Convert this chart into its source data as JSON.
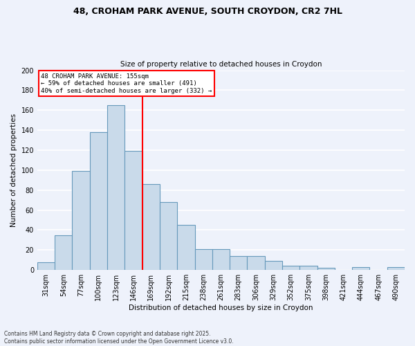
{
  "title1": "48, CROHAM PARK AVENUE, SOUTH CROYDON, CR2 7HL",
  "title2": "Size of property relative to detached houses in Croydon",
  "xlabel": "Distribution of detached houses by size in Croydon",
  "ylabel": "Number of detached properties",
  "categories": [
    "31sqm",
    "54sqm",
    "77sqm",
    "100sqm",
    "123sqm",
    "146sqm",
    "169sqm",
    "192sqm",
    "215sqm",
    "238sqm",
    "261sqm",
    "283sqm",
    "306sqm",
    "329sqm",
    "352sqm",
    "375sqm",
    "398sqm",
    "421sqm",
    "444sqm",
    "467sqm",
    "490sqm"
  ],
  "values": [
    8,
    35,
    99,
    138,
    165,
    119,
    86,
    68,
    45,
    21,
    21,
    14,
    14,
    9,
    4,
    4,
    2,
    0,
    3,
    0,
    3
  ],
  "bar_color": "#c9daea",
  "bar_edge_color": "#6699bb",
  "vline_color": "red",
  "annotation_text": "48 CROHAM PARK AVENUE: 155sqm\n← 59% of detached houses are smaller (491)\n40% of semi-detached houses are larger (332) →",
  "annotation_box_color": "white",
  "annotation_box_edge": "red",
  "ylim": [
    0,
    200
  ],
  "yticks": [
    0,
    20,
    40,
    60,
    80,
    100,
    120,
    140,
    160,
    180,
    200
  ],
  "footer": "Contains HM Land Registry data © Crown copyright and database right 2025.\nContains public sector information licensed under the Open Government Licence v3.0.",
  "bg_color": "#eef2fb",
  "grid_color": "white"
}
